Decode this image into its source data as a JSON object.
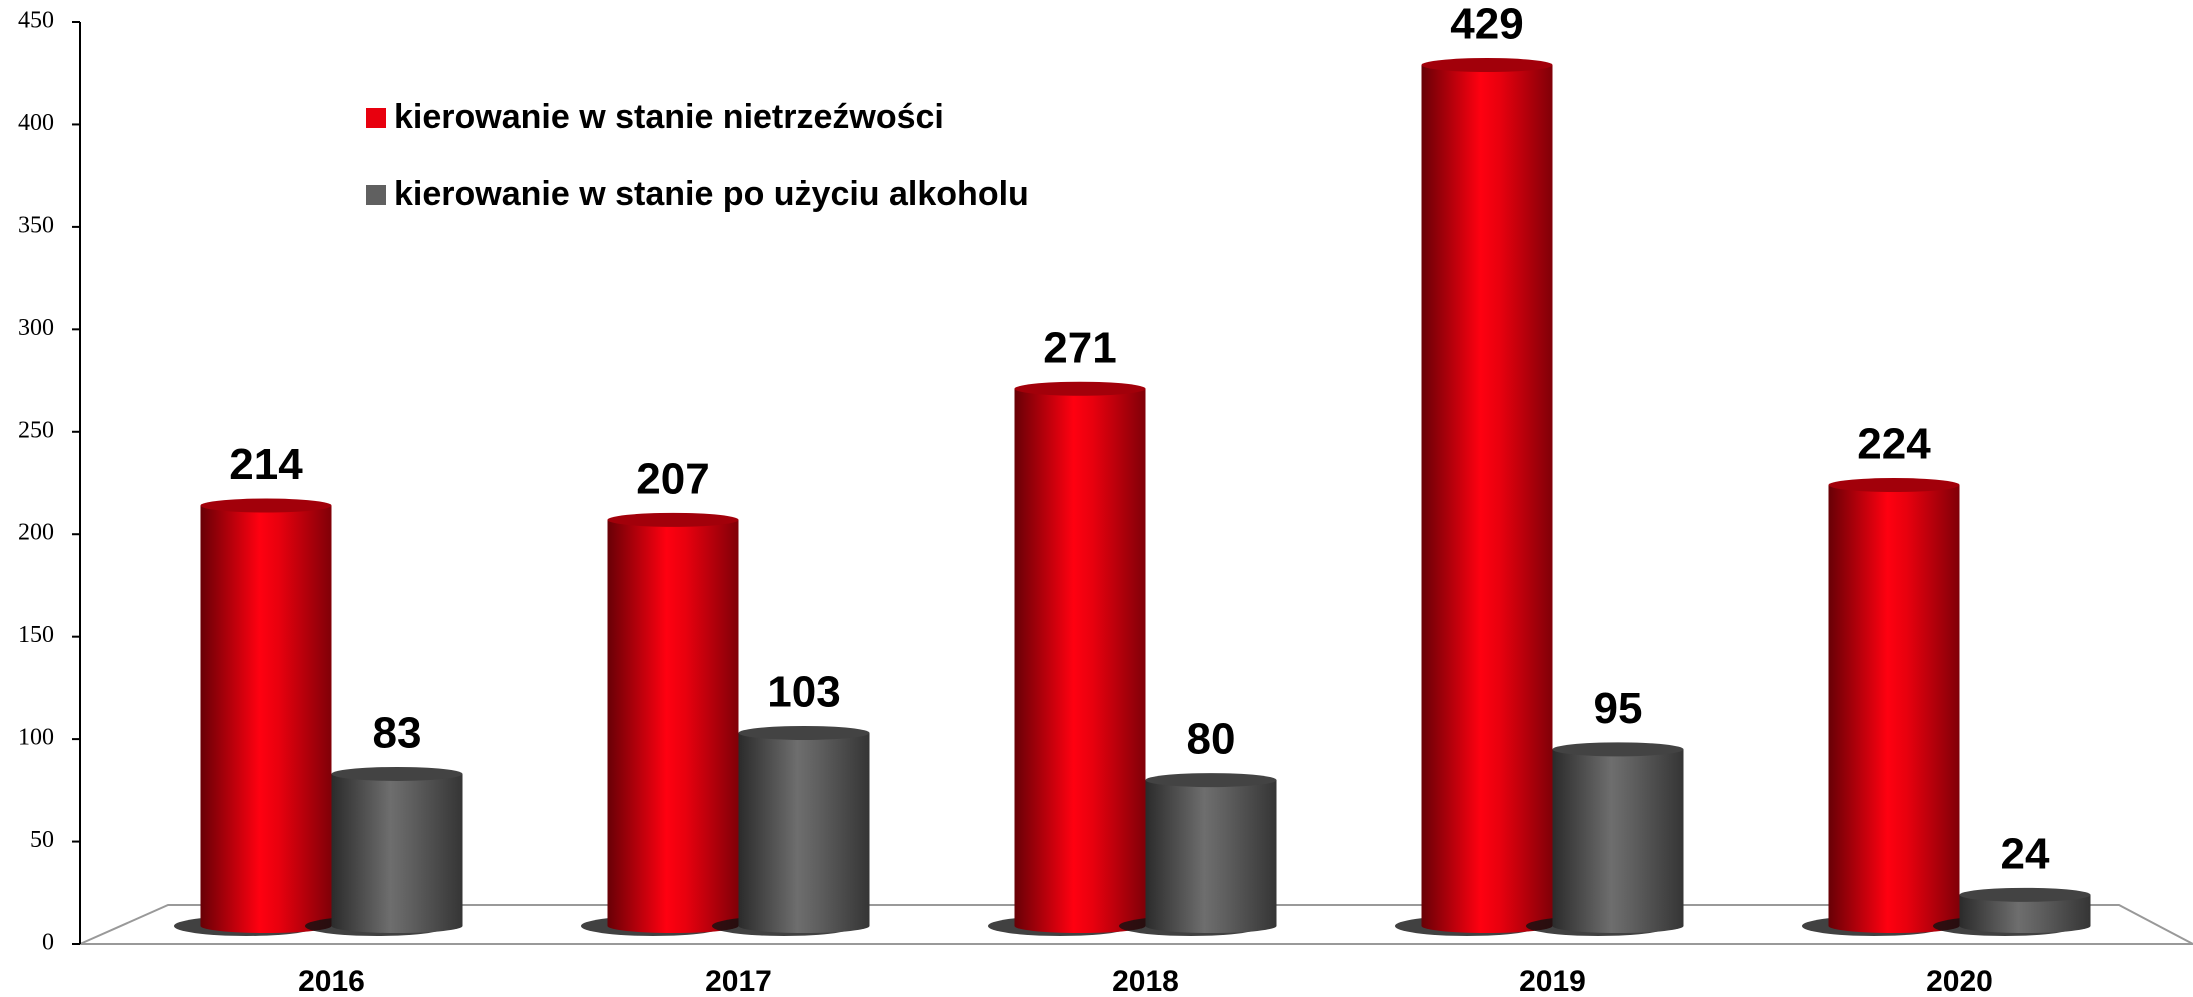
{
  "chart_data": {
    "type": "bar",
    "categories": [
      "2016",
      "2017",
      "2018",
      "2019",
      "2020"
    ],
    "series": [
      {
        "name": "kierowanie w stanie nietrzeźwości",
        "color": "#e8000e",
        "values": [
          214,
          207,
          271,
          429,
          224
        ]
      },
      {
        "name": "kierowanie w stanie po użyciu alkoholu",
        "color": "#606060",
        "values": [
          83,
          103,
          80,
          95,
          24
        ]
      }
    ],
    "ylim": [
      0,
      450
    ],
    "yticks": [
      0,
      50,
      100,
      150,
      200,
      250,
      300,
      350,
      400,
      450
    ]
  }
}
